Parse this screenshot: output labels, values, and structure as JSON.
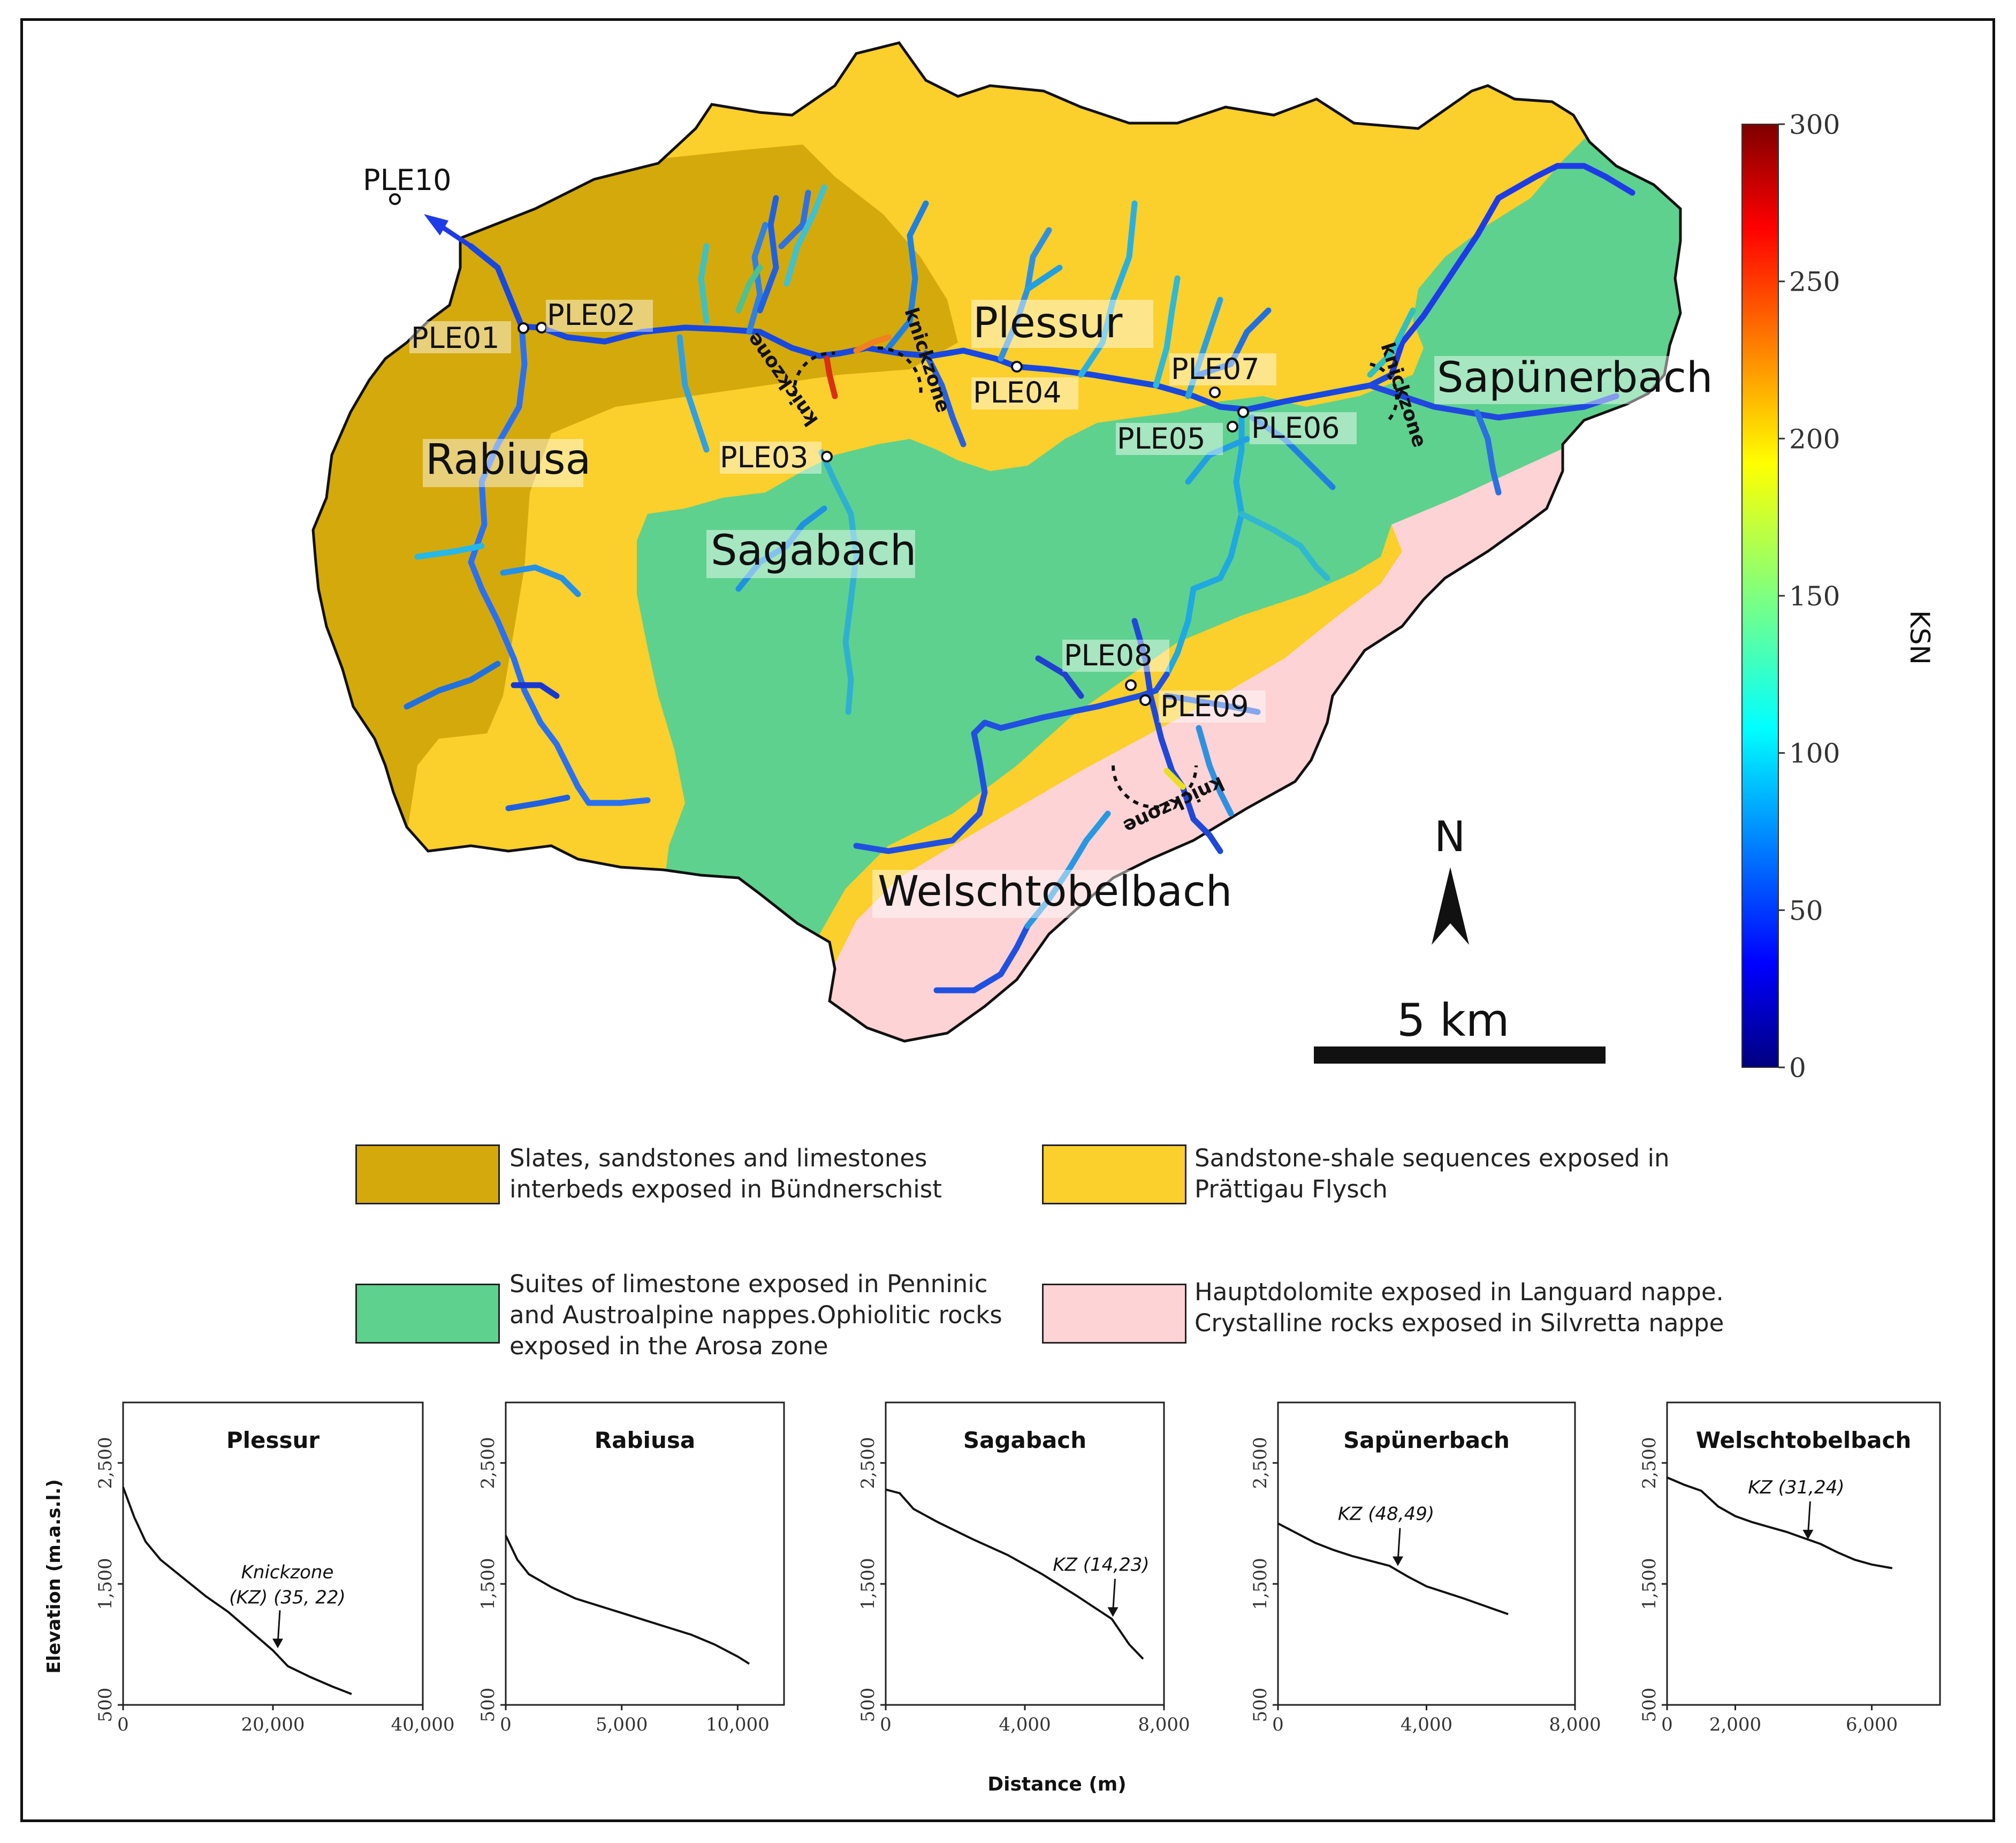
{
  "map": {
    "north_label": "N",
    "scale_label": "5 km",
    "knickzone_label": "knickzone",
    "rivers": [
      "Plessur",
      "Rabiusa",
      "Sagabach",
      "Sapünerbach",
      "Welschtobelbach"
    ],
    "stations": [
      "PLE01",
      "PLE02",
      "PLE03",
      "PLE04",
      "PLE05",
      "PLE06",
      "PLE07",
      "PLE08",
      "PLE09",
      "PLE10"
    ]
  },
  "colorbar": {
    "title": "KSN",
    "ticks": [
      "0",
      "50",
      "100",
      "150",
      "200",
      "250",
      "300"
    ],
    "min": 0,
    "max": 300,
    "colormap": "jet"
  },
  "legend": [
    {
      "text": "Slates, sandstones and limestones interbeds exposed in Bündnerschist",
      "line1": "Slates, sandstones and limestones",
      "line2": "interbeds exposed in Bündnerschist",
      "line3": "",
      "color": "#D4A90C"
    },
    {
      "text": "Sandstone-shale sequences exposed in Prättigau Flysch",
      "line1": "Sandstone-shale sequences exposed in",
      "line2": "Prättigau Flysch",
      "line3": "",
      "color": "#FBCF2C"
    },
    {
      "text": "Suites of limestone exposed in Penninic and Austroalpine nappes.Ophiolitic rocks exposed in the Arosa zone",
      "line1": "Suites of limestone exposed in Penninic",
      "line2": "and Austroalpine nappes.Ophiolitic rocks",
      "line3": "exposed in the Arosa zone",
      "color": "#5ED18E"
    },
    {
      "text": "Hauptdolomite exposed in Languard nappe. Crystalline rocks exposed in Silvretta nappe",
      "line1": "Hauptdolomite exposed in Languard nappe.",
      "line2": "Crystalline rocks exposed in Silvretta nappe",
      "line3": "",
      "color": "#FED3D5"
    }
  ],
  "colors": {
    "bundnerschist": "#D4A90C",
    "flysch": "#FBCF2C",
    "penninic": "#5ED18E",
    "silvretta": "#FED3D5"
  },
  "profiles": {
    "ylabel": "Elevation (m.a.s.l.)",
    "xlabel": "Distance (m)"
  },
  "chart_data": [
    {
      "type": "line",
      "title": "Plessur",
      "xlim": [
        0,
        40000
      ],
      "ylim": [
        500,
        3000
      ],
      "xticks": [
        0,
        20000,
        40000
      ],
      "xtick_labels": [
        "0",
        "20,000",
        "40,000"
      ],
      "yticks": [
        500,
        1500,
        2500
      ],
      "ytick_labels": [
        "500",
        "1,500",
        "2,500"
      ],
      "x": [
        0,
        1500,
        3000,
        5000,
        8000,
        11000,
        14000,
        17000,
        20000,
        22000,
        25000,
        28000,
        30500
      ],
      "y": [
        2300,
        2050,
        1850,
        1700,
        1550,
        1400,
        1270,
        1110,
        950,
        820,
        730,
        650,
        590
      ],
      "annotation": {
        "text_line1": "Knickzone",
        "text_line2": "(KZ) (35, 22)",
        "x": 20500,
        "y": 950
      }
    },
    {
      "type": "line",
      "title": "Rabiusa",
      "xlim": [
        0,
        12000
      ],
      "ylim": [
        500,
        3000
      ],
      "xticks": [
        0,
        5000,
        10000
      ],
      "xtick_labels": [
        "0",
        "5,000",
        "10,000"
      ],
      "yticks": [
        500,
        1500,
        2500
      ],
      "ytick_labels": [
        "500",
        "1,500",
        "2,500"
      ],
      "x": [
        0,
        500,
        1000,
        2000,
        3000,
        4000,
        5000,
        6000,
        7000,
        8000,
        9000,
        10000,
        10500
      ],
      "y": [
        1900,
        1700,
        1580,
        1470,
        1380,
        1320,
        1260,
        1200,
        1140,
        1080,
        1000,
        900,
        840
      ],
      "annotation": null
    },
    {
      "type": "line",
      "title": "Sagabach",
      "xlim": [
        0,
        8000
      ],
      "ylim": [
        500,
        3000
      ],
      "xticks": [
        0,
        4000,
        8000
      ],
      "xtick_labels": [
        "0",
        "4,000",
        "8,000"
      ],
      "yticks": [
        500,
        1500,
        2500
      ],
      "ytick_labels": [
        "500",
        "1,500",
        "2,500"
      ],
      "x": [
        0,
        400,
        800,
        1500,
        2500,
        3500,
        4500,
        5500,
        6500,
        7000,
        7400
      ],
      "y": [
        2280,
        2250,
        2120,
        2010,
        1870,
        1740,
        1580,
        1400,
        1210,
        1000,
        880
      ],
      "annotation": {
        "text_line1": "KZ (14,23)",
        "text_line2": "",
        "x": 6500,
        "y": 1210
      }
    },
    {
      "type": "line",
      "title": "Sapünerbach",
      "xlim": [
        0,
        8000
      ],
      "ylim": [
        500,
        3000
      ],
      "xticks": [
        0,
        4000,
        8000
      ],
      "xtick_labels": [
        "0",
        "4,000",
        "8,000"
      ],
      "yticks": [
        500,
        1500,
        2500
      ],
      "ytick_labels": [
        "500",
        "1,500",
        "2,500"
      ],
      "x": [
        0,
        500,
        1000,
        1500,
        2000,
        2500,
        3000,
        3500,
        4000,
        5000,
        6200
      ],
      "y": [
        2000,
        1920,
        1840,
        1780,
        1730,
        1690,
        1650,
        1560,
        1480,
        1380,
        1250
      ],
      "annotation": {
        "text_line1": "KZ (48,49)",
        "text_line2": "",
        "x": 3200,
        "y": 1630
      }
    },
    {
      "type": "line",
      "title": "Welschtobelbach",
      "xlim": [
        0,
        8000
      ],
      "ylim": [
        500,
        3000
      ],
      "xticks": [
        0,
        2000,
        6000
      ],
      "xtick_labels": [
        "0",
        "2,000",
        "6,000"
      ],
      "yticks": [
        500,
        1500,
        2500
      ],
      "ytick_labels": [
        "500",
        "1,500",
        "2,500"
      ],
      "x": [
        0,
        500,
        1000,
        1500,
        2000,
        2500,
        3000,
        3500,
        4000,
        4500,
        5000,
        5500,
        6000,
        6600
      ],
      "y": [
        2380,
        2320,
        2270,
        2140,
        2060,
        2010,
        1970,
        1930,
        1880,
        1830,
        1760,
        1700,
        1660,
        1630
      ],
      "annotation": {
        "text_line1": "KZ (31,24)",
        "text_line2": "",
        "x": 4100,
        "y": 1850
      }
    }
  ]
}
